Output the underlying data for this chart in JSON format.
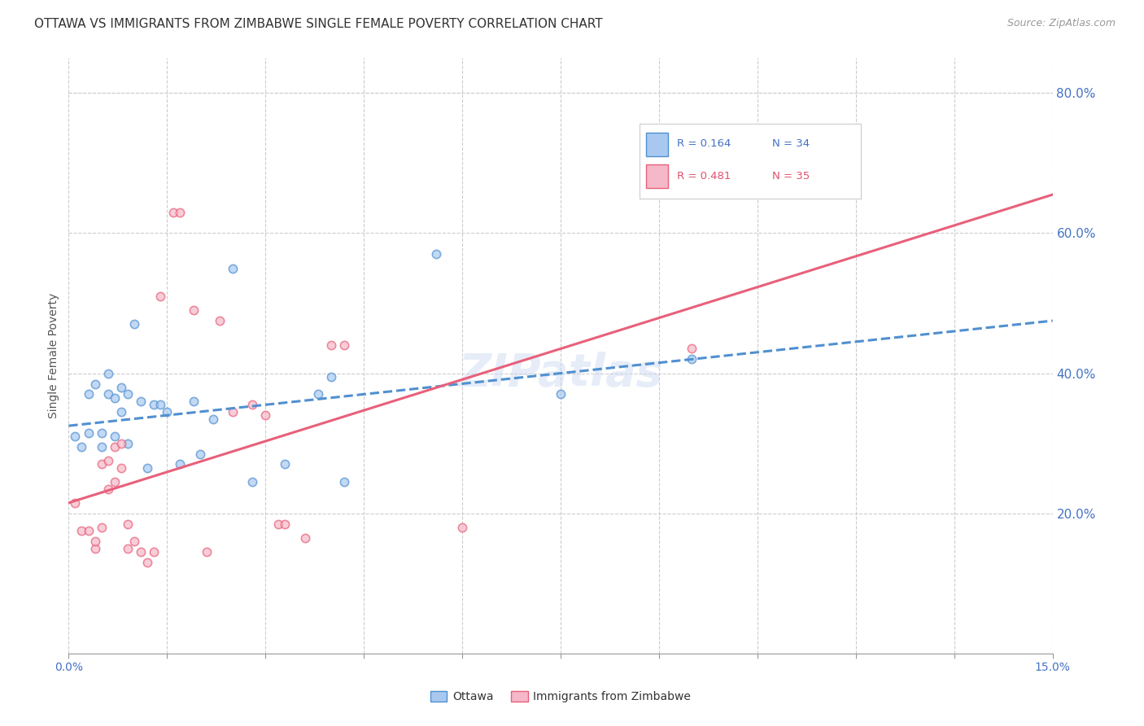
{
  "title": "OTTAWA VS IMMIGRANTS FROM ZIMBABWE SINGLE FEMALE POVERTY CORRELATION CHART",
  "source": "Source: ZipAtlas.com",
  "ylabel": "Single Female Poverty",
  "right_yticks": [
    0.0,
    0.2,
    0.4,
    0.6,
    0.8
  ],
  "right_yticklabels": [
    "",
    "20.0%",
    "40.0%",
    "60.0%",
    "80.0%"
  ],
  "xmin": 0.0,
  "xmax": 0.15,
  "ymin": 0.0,
  "ymax": 0.85,
  "r_ottawa": 0.164,
  "n_ottawa": 34,
  "r_zimbabwe": 0.481,
  "n_zimbabwe": 35,
  "color_ottawa": "#a8c8f0",
  "color_zimbabwe": "#f5b8c8",
  "color_ottawa_line": "#5090d0",
  "color_zimbabwe_line": "#e8607a",
  "watermark": "ZIPatlas",
  "ottawa_x": [
    0.001,
    0.002,
    0.003,
    0.003,
    0.004,
    0.005,
    0.005,
    0.006,
    0.006,
    0.007,
    0.007,
    0.008,
    0.008,
    0.009,
    0.009,
    0.01,
    0.011,
    0.012,
    0.013,
    0.014,
    0.015,
    0.017,
    0.019,
    0.02,
    0.022,
    0.025,
    0.028,
    0.033,
    0.038,
    0.04,
    0.042,
    0.056,
    0.075,
    0.095
  ],
  "ottawa_y": [
    0.31,
    0.295,
    0.37,
    0.315,
    0.385,
    0.295,
    0.315,
    0.37,
    0.4,
    0.31,
    0.365,
    0.38,
    0.345,
    0.3,
    0.37,
    0.47,
    0.36,
    0.265,
    0.355,
    0.355,
    0.345,
    0.27,
    0.36,
    0.285,
    0.335,
    0.55,
    0.245,
    0.27,
    0.37,
    0.395,
    0.245,
    0.57,
    0.37,
    0.42
  ],
  "zimbabwe_x": [
    0.001,
    0.002,
    0.003,
    0.004,
    0.004,
    0.005,
    0.005,
    0.006,
    0.006,
    0.007,
    0.007,
    0.008,
    0.008,
    0.009,
    0.009,
    0.01,
    0.011,
    0.012,
    0.013,
    0.014,
    0.016,
    0.017,
    0.019,
    0.021,
    0.023,
    0.025,
    0.028,
    0.03,
    0.032,
    0.033,
    0.036,
    0.04,
    0.042,
    0.06,
    0.095
  ],
  "zimbabwe_y": [
    0.215,
    0.175,
    0.175,
    0.15,
    0.16,
    0.18,
    0.27,
    0.235,
    0.275,
    0.245,
    0.295,
    0.3,
    0.265,
    0.15,
    0.185,
    0.16,
    0.145,
    0.13,
    0.145,
    0.51,
    0.63,
    0.63,
    0.49,
    0.145,
    0.475,
    0.345,
    0.355,
    0.34,
    0.185,
    0.185,
    0.165,
    0.44,
    0.44,
    0.18,
    0.435
  ],
  "title_fontsize": 11,
  "axis_label_fontsize": 10,
  "tick_fontsize": 10,
  "marker_size": 55,
  "marker_alpha": 0.7,
  "background_color": "#ffffff",
  "grid_color": "#cccccc"
}
